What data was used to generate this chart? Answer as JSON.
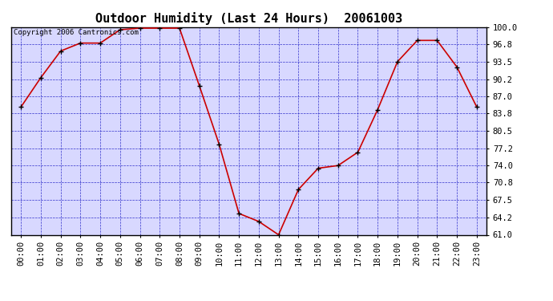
{
  "title": "Outdoor Humidity (Last 24 Hours)  20061003",
  "copyright_text": "Copyright 2006 Cantronics.com",
  "x_labels": [
    "00:00",
    "01:00",
    "02:00",
    "03:00",
    "04:00",
    "05:00",
    "06:00",
    "07:00",
    "08:00",
    "09:00",
    "10:00",
    "11:00",
    "12:00",
    "13:00",
    "14:00",
    "15:00",
    "16:00",
    "17:00",
    "18:00",
    "19:00",
    "20:00",
    "21:00",
    "22:00",
    "23:00"
  ],
  "y_values": [
    85.0,
    90.5,
    95.5,
    97.0,
    97.0,
    99.5,
    99.8,
    99.8,
    99.8,
    89.0,
    78.0,
    65.0,
    63.5,
    61.0,
    69.5,
    73.5,
    74.0,
    76.5,
    84.5,
    93.5,
    97.5,
    97.5,
    92.5,
    85.0
  ],
  "line_color": "#cc0000",
  "marker_color": "#000000",
  "bg_color": "#ffffff",
  "plot_bg_color": "#d8d8ff",
  "border_color": "#000000",
  "grid_color": "#3333cc",
  "title_color": "#000000",
  "copyright_color": "#000000",
  "y_tick_labels": [
    "100.0",
    "96.8",
    "93.5",
    "90.2",
    "87.0",
    "83.8",
    "80.5",
    "77.2",
    "74.0",
    "70.8",
    "67.5",
    "64.2",
    "61.0"
  ],
  "y_tick_values": [
    100.0,
    96.8,
    93.5,
    90.2,
    87.0,
    83.8,
    80.5,
    77.2,
    74.0,
    70.8,
    67.5,
    64.2,
    61.0
  ],
  "ylim": [
    61.0,
    100.0
  ],
  "title_fontsize": 11,
  "axis_fontsize": 7.5,
  "copyright_fontsize": 6.5
}
